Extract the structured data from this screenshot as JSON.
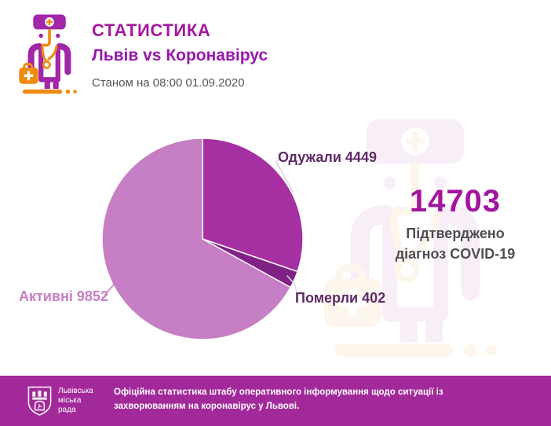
{
  "header": {
    "title": "СТАТИСТИКА",
    "subtitle": "Львів vs Коронавірус",
    "date_line": "Станом на 08:00 01.09.2020"
  },
  "summary": {
    "total": "14703",
    "caption_line1": "Підтверджено",
    "caption_line2": "діагноз COVID-19"
  },
  "chart_data": {
    "type": "pie",
    "title": "Львів vs Коронавірус",
    "total": 14703,
    "start_angle_deg": 0,
    "direction": "clockwise",
    "legend_position": "callout-labels",
    "segments": [
      {
        "label": "Одужали",
        "value": 4449,
        "percent": 30.3,
        "color": "#a62fa2",
        "display": "Одужали 4449"
      },
      {
        "label": "Померли",
        "value": 402,
        "percent": 2.7,
        "color": "#7f2185",
        "display": "Померли 402"
      },
      {
        "label": "Активні",
        "value": 9852,
        "percent": 67.0,
        "color": "#c67ec4",
        "display": "Активні 9852"
      }
    ]
  },
  "footer": {
    "logo_lines": [
      "Львівська",
      "міська",
      "рада"
    ],
    "message": "Офіційна статистика штабу оперативного інформування щодо ситуації із захворюванням на коронавірус у Львові."
  },
  "colors": {
    "title": "#a4189e",
    "subtitle": "#9818ae",
    "total": "#a3159e",
    "muted_text": "#55555a",
    "caption_text": "#4e4d52",
    "dark_label": "#5e2a66",
    "active_label": "#c67ec4",
    "footer_bg": "#a2299a",
    "icon_purple": "#a126a8",
    "icon_orange": "#ef8b0e",
    "leader": "#ddd8df"
  }
}
